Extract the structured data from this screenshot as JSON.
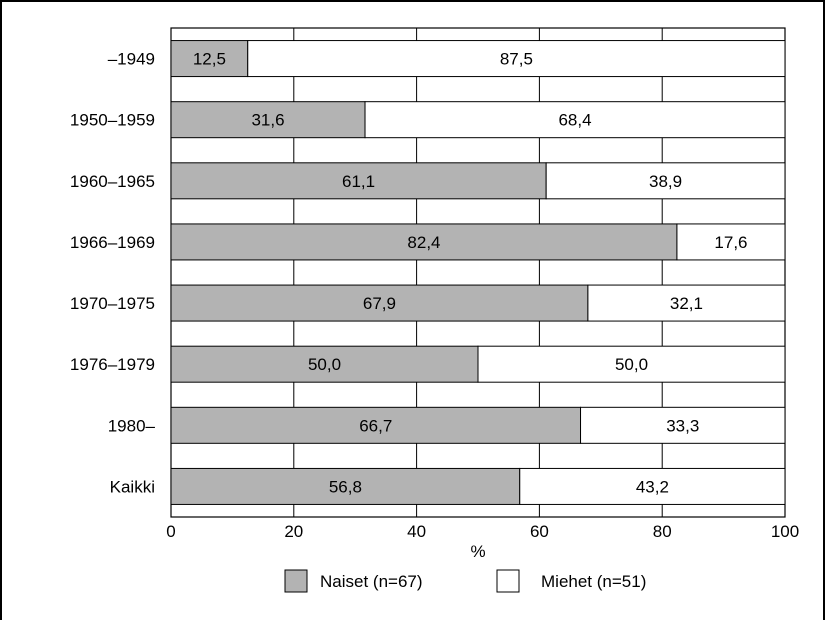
{
  "chart_data": {
    "type": "bar",
    "orientation": "horizontal",
    "stacked": "percent",
    "categories": [
      "–1949",
      "1950–1959",
      "1960–1965",
      "1966–1969",
      "1970–1975",
      "1976–1979",
      "1980–",
      "Kaikki"
    ],
    "series": [
      {
        "name": "Naiset (n=67)",
        "color": "#b3b3b3",
        "values": [
          12.5,
          31.6,
          61.1,
          82.4,
          67.9,
          50.0,
          66.7,
          56.8
        ],
        "labels": [
          "12,5",
          "31,6",
          "61,1",
          "82,4",
          "67,9",
          "50,0",
          "66,7",
          "56,8"
        ]
      },
      {
        "name": "Miehet (n=51)",
        "color": "#ffffff",
        "values": [
          87.5,
          68.4,
          38.9,
          17.6,
          32.1,
          50.0,
          33.3,
          43.2
        ],
        "labels": [
          "87,5",
          "68,4",
          "38,9",
          "17,6",
          "32,1",
          "50,0",
          "33,3",
          "43,2"
        ]
      }
    ],
    "xlabel": "%",
    "xlim": [
      0,
      100
    ],
    "xticks": [
      0,
      20,
      40,
      60,
      80,
      100
    ],
    "grid": "vertical",
    "legend": "bottom"
  }
}
